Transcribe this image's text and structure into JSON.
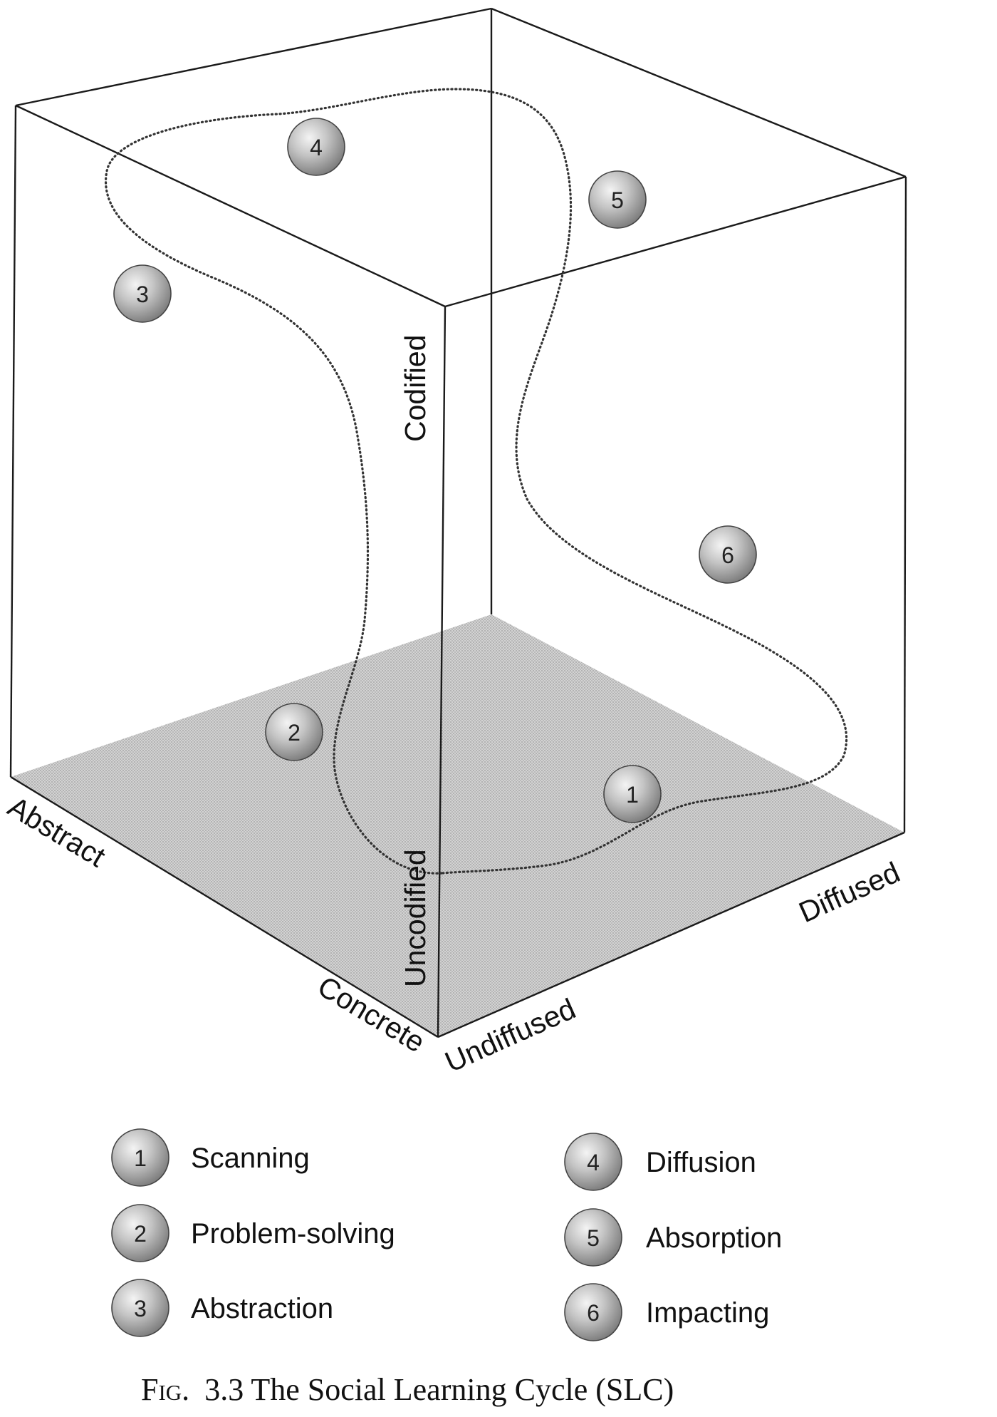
{
  "axes": {
    "codified": "Codified",
    "uncodified": "Uncodified",
    "abstract": "Abstract",
    "concrete": "Concrete",
    "undiffused": "Undiffused",
    "diffused": "Diffused"
  },
  "nodes": [
    {
      "num": "1"
    },
    {
      "num": "2"
    },
    {
      "num": "3"
    },
    {
      "num": "4"
    },
    {
      "num": "5"
    },
    {
      "num": "6"
    }
  ],
  "legend": [
    {
      "num": "1",
      "label": "Scanning"
    },
    {
      "num": "2",
      "label": "Problem-solving"
    },
    {
      "num": "3",
      "label": "Abstraction"
    },
    {
      "num": "4",
      "label": "Diffusion"
    },
    {
      "num": "5",
      "label": "Absorption"
    },
    {
      "num": "6",
      "label": "Impacting"
    }
  ],
  "caption": {
    "fig_small_caps": "Fig.",
    "text": "3.3 The Social Learning Cycle (SLC)"
  }
}
